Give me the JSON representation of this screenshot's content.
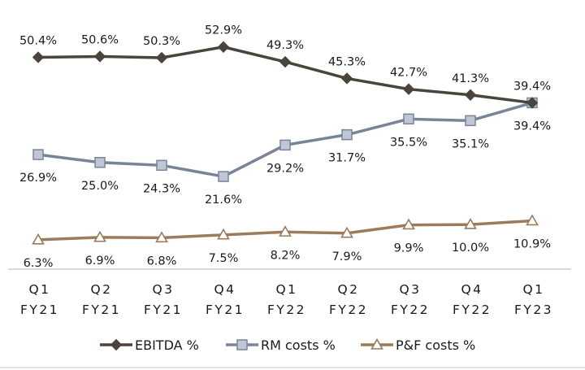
{
  "chart_data": {
    "type": "line",
    "title": "",
    "xlabel": "",
    "ylabel": "",
    "ylim": [
      0,
      55
    ],
    "grid": false,
    "legend_position": "bottom-center",
    "categories": [
      [
        "Q1",
        "FY21"
      ],
      [
        "Q2",
        "FY21"
      ],
      [
        "Q3",
        "FY21"
      ],
      [
        "Q4",
        "FY21"
      ],
      [
        "Q1",
        "FY22"
      ],
      [
        "Q2",
        "FY22"
      ],
      [
        "Q3",
        "FY22"
      ],
      [
        "Q4",
        "FY22"
      ],
      [
        "Q1",
        "FY23"
      ]
    ],
    "series": [
      {
        "name": "EBITDA %",
        "marker": "diamond",
        "color": "#4a443c",
        "marker_fill": "#4a443c",
        "label_position": "above",
        "values": [
          50.4,
          50.6,
          50.3,
          52.9,
          49.3,
          45.3,
          42.7,
          41.3,
          39.4
        ],
        "labels": [
          "50.4%",
          "50.6%",
          "50.3%",
          "52.9%",
          "49.3%",
          "45.3%",
          "42.7%",
          "41.3%",
          "39.4%"
        ]
      },
      {
        "name": "RM costs %",
        "marker": "square",
        "color": "#7a8499",
        "marker_fill": "#bfc7d5",
        "label_position": "below",
        "values": [
          26.9,
          25.0,
          24.3,
          21.6,
          29.2,
          31.7,
          35.5,
          35.1,
          39.4
        ],
        "labels": [
          "26.9%",
          "25.0%",
          "24.3%",
          "21.6%",
          "29.2%",
          "31.7%",
          "35.5%",
          "35.1%",
          "39.4%"
        ]
      },
      {
        "name": "P&F costs %",
        "marker": "triangle",
        "color": "#9c7b5a",
        "marker_fill": "#ffffff",
        "label_position": "below",
        "values": [
          6.3,
          6.9,
          6.8,
          7.5,
          8.2,
          7.9,
          9.9,
          10.0,
          10.9
        ],
        "labels": [
          "6.3%",
          "6.9%",
          "6.8%",
          "7.5%",
          "8.2%",
          "7.9%",
          "9.9%",
          "10.0%",
          "10.9%"
        ]
      }
    ]
  }
}
